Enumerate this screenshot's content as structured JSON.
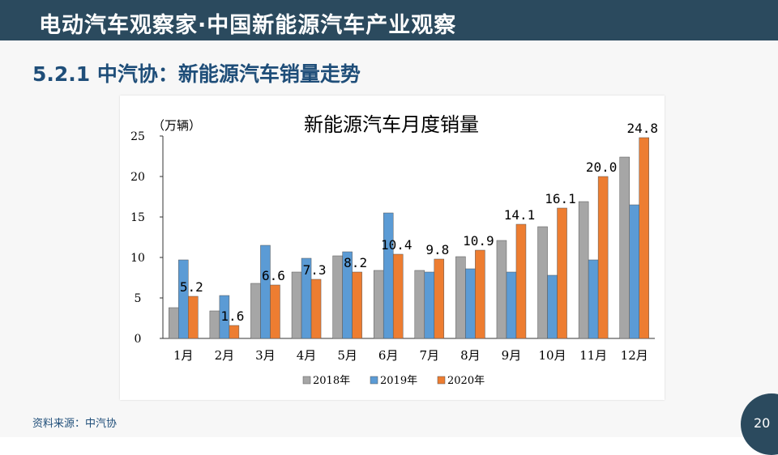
{
  "banner": {
    "title": "电动汽车观察家·中国新能源汽车产业观察"
  },
  "section": {
    "title": "5.2.1 中汽协：新能源汽车销量走势"
  },
  "footer": {
    "source": "资料来源：中汽协",
    "page_number": "20"
  },
  "colors": {
    "banner": "#2b4a5e",
    "title": "#1f4e79",
    "s2018": "#a6a6a6",
    "s2019": "#5b9bd5",
    "s2020": "#ed7d31"
  },
  "chart_data": {
    "type": "bar",
    "title": "新能源汽车月度销量",
    "unit_label": "（万辆）",
    "categories": [
      "1月",
      "2月",
      "3月",
      "4月",
      "5月",
      "6月",
      "7月",
      "8月",
      "9月",
      "10月",
      "11月",
      "12月"
    ],
    "ylim": [
      0,
      25
    ],
    "yticks": [
      "0",
      "5",
      "10",
      "15",
      "20",
      "25"
    ],
    "grid": false,
    "legend_position": "bottom",
    "series": [
      {
        "name": "2018年",
        "color": "#a6a6a6",
        "values": [
          3.8,
          3.4,
          6.8,
          8.2,
          10.2,
          8.4,
          8.4,
          10.1,
          12.1,
          13.8,
          16.9,
          22.4
        ]
      },
      {
        "name": "2019年",
        "color": "#5b9bd5",
        "values": [
          9.7,
          5.3,
          11.5,
          9.9,
          10.7,
          15.5,
          8.2,
          8.6,
          8.2,
          7.8,
          9.7,
          16.5
        ]
      },
      {
        "name": "2020年",
        "color": "#ed7d31",
        "values": [
          5.2,
          1.6,
          6.6,
          7.3,
          8.2,
          10.4,
          9.8,
          10.9,
          14.1,
          16.1,
          20.0,
          24.8
        ]
      }
    ],
    "data_labels_2020": [
      "5.2",
      "1.6",
      "6.6",
      "7.3",
      "8.2",
      "10.4",
      "9.8",
      "10.9",
      "14.1",
      "16.1",
      "20.0",
      "24.8"
    ]
  }
}
